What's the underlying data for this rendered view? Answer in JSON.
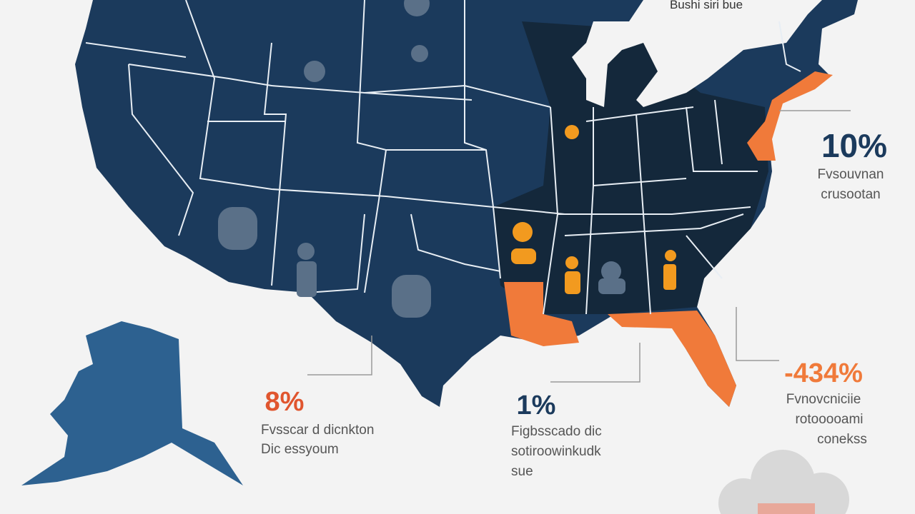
{
  "header": {
    "title": "Bushi siri bue"
  },
  "callouts": [
    {
      "value": "10%",
      "lines": [
        "Fvsouvnan",
        "crusootan"
      ]
    },
    {
      "value": "8%",
      "lines": [
        "Fvsscar d dicnkton",
        "Dic essyoum"
      ]
    },
    {
      "value": "1%",
      "lines": [
        "Figbsscado dic",
        "sotiroowinkudk",
        "sue"
      ]
    },
    {
      "value": "-434%",
      "lines": [
        "Fvnovcniciie",
        "rotooooami",
        "conekss"
      ]
    }
  ]
}
